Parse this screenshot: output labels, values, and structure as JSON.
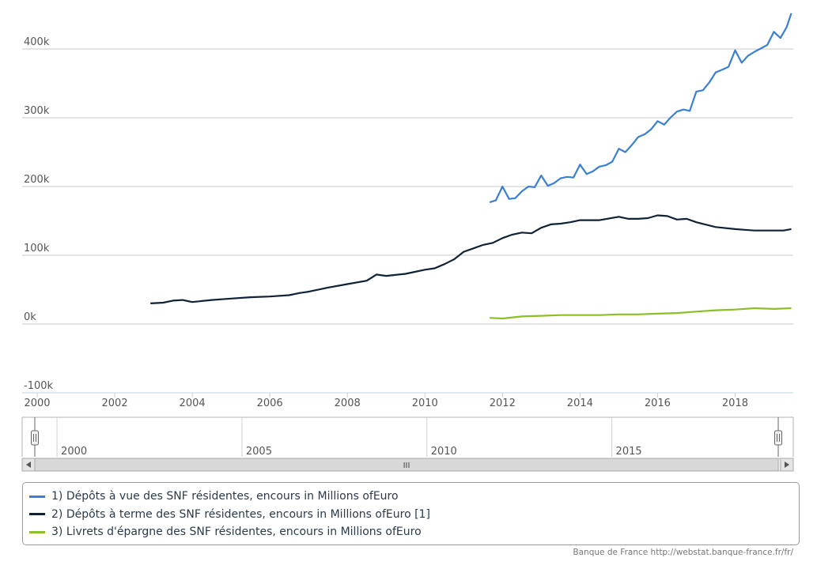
{
  "chart_data": {
    "type": "line",
    "x_axis": {
      "ticks": [
        "2000",
        "2002",
        "2004",
        "2006",
        "2008",
        "2010",
        "2012",
        "2014",
        "2016",
        "2018"
      ],
      "range": [
        2000.0,
        2019.5
      ]
    },
    "y_axis": {
      "ticks": [
        "-100k",
        "0k",
        "100k",
        "200k",
        "300k",
        "400k"
      ],
      "range": [
        -100000,
        460000
      ]
    },
    "grid": true,
    "series": [
      {
        "name": "1) Dépôts à vue des SNF résidentes, encours in Millions ofEuro",
        "color": "#3a7fd1",
        "x": [
          2011.67,
          2011.83,
          2012.0,
          2012.17,
          2012.33,
          2012.5,
          2012.67,
          2012.83,
          2013.0,
          2013.17,
          2013.33,
          2013.5,
          2013.67,
          2013.83,
          2014.0,
          2014.17,
          2014.33,
          2014.5,
          2014.67,
          2014.83,
          2015.0,
          2015.17,
          2015.33,
          2015.5,
          2015.67,
          2015.83,
          2016.0,
          2016.17,
          2016.33,
          2016.5,
          2016.67,
          2016.83,
          2017.0,
          2017.17,
          2017.33,
          2017.5,
          2017.67,
          2017.83,
          2018.0,
          2018.17,
          2018.33,
          2018.5,
          2018.67,
          2018.83,
          2019.0,
          2019.17,
          2019.33,
          2019.45
        ],
        "values": [
          177000,
          180000,
          200000,
          182000,
          183000,
          193000,
          200000,
          199000,
          216000,
          201000,
          205000,
          212000,
          214000,
          213000,
          232000,
          218000,
          222000,
          229000,
          231000,
          236000,
          255000,
          250000,
          260000,
          272000,
          276000,
          283000,
          295000,
          290000,
          300000,
          309000,
          312000,
          310000,
          338000,
          340000,
          351000,
          366000,
          370000,
          374000,
          398000,
          380000,
          390000,
          396000,
          401000,
          406000,
          425000,
          416000,
          432000,
          452000
        ]
      },
      {
        "name": "2) Dépôts à terme des SNF résidentes, encours in Millions ofEuro [1]",
        "color": "#0f2236",
        "x": [
          2002.92,
          2003.25,
          2003.5,
          2003.75,
          2004.0,
          2004.5,
          2005.0,
          2005.5,
          2006.0,
          2006.5,
          2006.75,
          2007.0,
          2007.5,
          2008.0,
          2008.5,
          2008.75,
          2009.0,
          2009.5,
          2010.0,
          2010.25,
          2010.5,
          2010.75,
          2011.0,
          2011.25,
          2011.5,
          2011.75,
          2012.0,
          2012.25,
          2012.5,
          2012.75,
          2013.0,
          2013.25,
          2013.5,
          2013.75,
          2014.0,
          2014.5,
          2015.0,
          2015.25,
          2015.5,
          2015.75,
          2016.0,
          2016.25,
          2016.5,
          2016.75,
          2017.0,
          2017.5,
          2018.0,
          2018.25,
          2018.5,
          2018.75,
          2019.0,
          2019.25,
          2019.45
        ],
        "values": [
          30000,
          31000,
          34000,
          35000,
          32000,
          35000,
          37000,
          39000,
          40000,
          42000,
          45000,
          47000,
          53000,
          58000,
          63000,
          72000,
          70000,
          73000,
          79000,
          81000,
          87000,
          94000,
          105000,
          110000,
          115000,
          118000,
          125000,
          130000,
          133000,
          132000,
          140000,
          145000,
          146000,
          148000,
          151000,
          151000,
          156000,
          153000,
          153000,
          154000,
          158000,
          157000,
          152000,
          153000,
          148000,
          141000,
          138000,
          137000,
          136000,
          136000,
          136000,
          136000,
          138000
        ]
      },
      {
        "name": "3) Livrets d'épargne des SNF résidentes, encours in Millions ofEuro",
        "color": "#8cbf26",
        "x": [
          2011.67,
          2012.0,
          2012.5,
          2013.0,
          2013.5,
          2014.0,
          2014.5,
          2015.0,
          2015.5,
          2016.0,
          2016.5,
          2017.0,
          2017.5,
          2018.0,
          2018.5,
          2019.0,
          2019.45
        ],
        "values": [
          9000,
          8000,
          11000,
          12000,
          13000,
          13000,
          13000,
          14000,
          14000,
          15000,
          16000,
          18000,
          20000,
          21000,
          23000,
          22000,
          23000
        ]
      }
    ]
  },
  "navigator": {
    "labels": [
      "2000",
      "2005",
      "2010",
      "2015"
    ],
    "scrollbar_grip": "III"
  },
  "credits": "Banque de France http://webstat.banque-france.fr/fr/"
}
